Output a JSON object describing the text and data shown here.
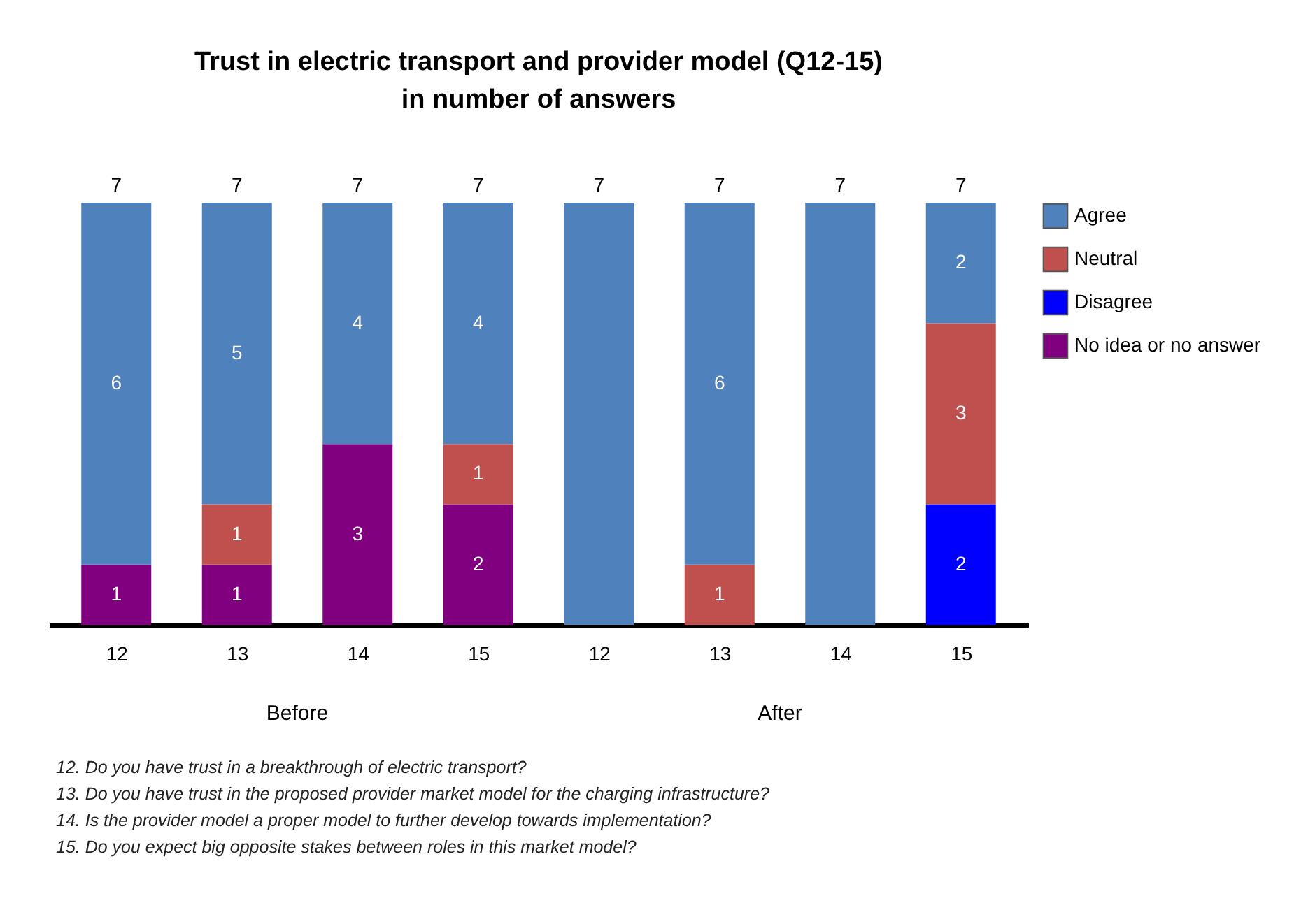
{
  "chart_data": {
    "type": "bar",
    "title": "Trust in electric transport and provider model (Q12-15)",
    "subtitle": "in number of answers",
    "categories": [
      "12",
      "13",
      "14",
      "15",
      "12",
      "13",
      "14",
      "15"
    ],
    "stacked": true,
    "legend": "right",
    "ylim": [
      0,
      7
    ],
    "series": [
      {
        "name": "No idea or no answer",
        "color": "#800080",
        "values": [
          1,
          1,
          3,
          2,
          null,
          null,
          null,
          null
        ],
        "value_labels": [
          "1",
          "1",
          "3",
          "2",
          null,
          null,
          null,
          null
        ]
      },
      {
        "name": "Disagree",
        "color": "#0000ff",
        "values": [
          null,
          null,
          null,
          null,
          null,
          null,
          null,
          2
        ],
        "value_labels": [
          null,
          null,
          null,
          null,
          null,
          null,
          null,
          "2"
        ]
      },
      {
        "name": "Neutral",
        "color": "#c0504d",
        "values": [
          null,
          1,
          null,
          1,
          null,
          1,
          null,
          3
        ],
        "value_labels": [
          null,
          "1",
          null,
          "1",
          null,
          "1",
          null,
          "3"
        ]
      },
      {
        "name": "Agree",
        "color": "#4f81bd",
        "values": [
          6,
          5,
          4,
          4,
          7,
          6,
          7,
          2
        ],
        "value_labels": [
          "6",
          "5",
          "4",
          "4",
          null,
          "6",
          null,
          "2"
        ]
      }
    ],
    "totals": [
      "7",
      "7",
      "7",
      "7",
      "7",
      "7",
      "7",
      "7"
    ],
    "annotations": [
      "Before",
      "After",
      "12. Do you have trust in a breakthrough of electric transport?",
      "13. Do you have trust in the proposed provider market model for the charging infrastructure?",
      "14. Is the provider model a proper model to further develop towards implementation?",
      "15. Do you expect big opposite stakes between roles in this market model?"
    ]
  }
}
